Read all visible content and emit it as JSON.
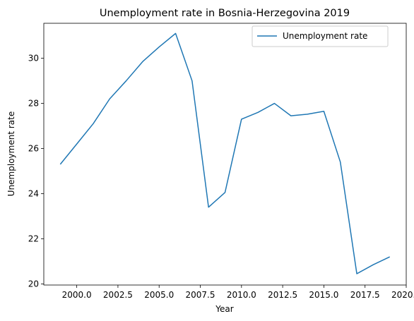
{
  "chart_data": {
    "type": "line",
    "title": "Unemployment rate in Bosnia-Herzegovina 2019",
    "xlabel": "Year",
    "ylabel": "Unemployment rate",
    "xlim": [
      1998.0,
      2020.0
    ],
    "ylim": [
      19.95,
      31.55
    ],
    "xticks": [
      2000.0,
      2002.5,
      2005.0,
      2007.5,
      2010.0,
      2012.5,
      2015.0,
      2017.5,
      2020.0
    ],
    "xtick_labels": [
      "2000.0",
      "2002.5",
      "2005.0",
      "2007.5",
      "2010.0",
      "2012.5",
      "2015.0",
      "2017.5",
      "2020.0"
    ],
    "yticks": [
      20,
      22,
      24,
      26,
      28,
      30
    ],
    "ytick_labels": [
      "20",
      "22",
      "24",
      "26",
      "28",
      "30"
    ],
    "grid": false,
    "legend": "top-right",
    "series": [
      {
        "name": "Unemployment rate",
        "color": "#1f77b4",
        "x": [
          1999,
          2000,
          2001,
          2002,
          2003,
          2004,
          2005,
          2006,
          2007,
          2008,
          2009,
          2010,
          2011,
          2012,
          2013,
          2014,
          2015,
          2016,
          2017,
          2018,
          2019
        ],
        "y": [
          25.3,
          26.2,
          27.1,
          28.2,
          29.0,
          29.85,
          30.5,
          31.1,
          29.0,
          23.4,
          24.05,
          27.3,
          27.6,
          28.0,
          27.45,
          27.52,
          27.65,
          25.4,
          20.45,
          20.85,
          21.2
        ]
      }
    ]
  }
}
